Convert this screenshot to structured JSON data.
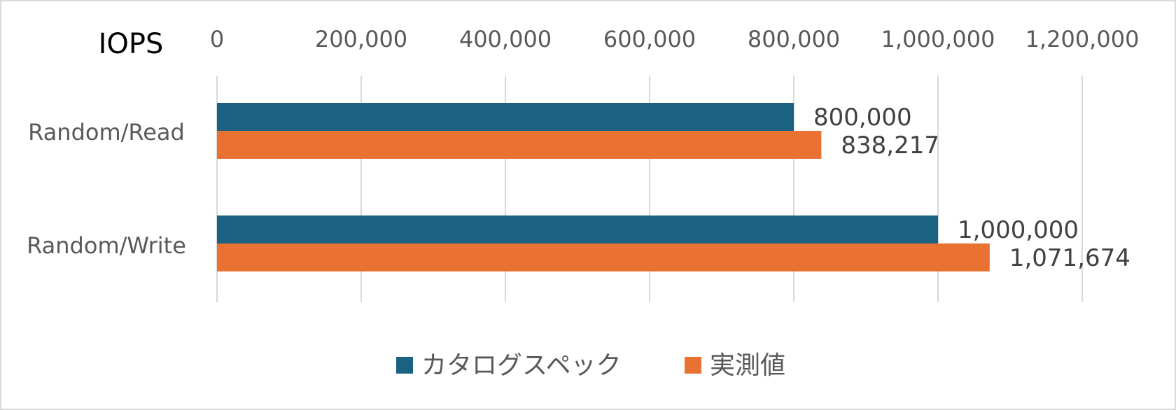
{
  "chart_data": {
    "type": "bar",
    "orientation": "horizontal",
    "title": "IOPS",
    "categories": [
      "Random/Read",
      "Random/Write"
    ],
    "series": [
      {
        "name": "カタログスペック",
        "color": "#1a6182",
        "values": [
          800000,
          1000000
        ],
        "labels": [
          "800,000",
          "1,000,000"
        ]
      },
      {
        "name": "実測値",
        "color": "#e97132",
        "values": [
          838217,
          1071674
        ],
        "labels": [
          "838,217",
          "1,071,674"
        ]
      }
    ],
    "xlim": [
      0,
      1200000
    ],
    "ticks": [
      0,
      200000,
      400000,
      600000,
      800000,
      1000000,
      1200000
    ],
    "tick_labels": [
      "0",
      "200,000",
      "400,000",
      "600,000",
      "800,000",
      "1,000,000",
      "1,200,000"
    ],
    "grid": true,
    "legend_position": "bottom"
  }
}
